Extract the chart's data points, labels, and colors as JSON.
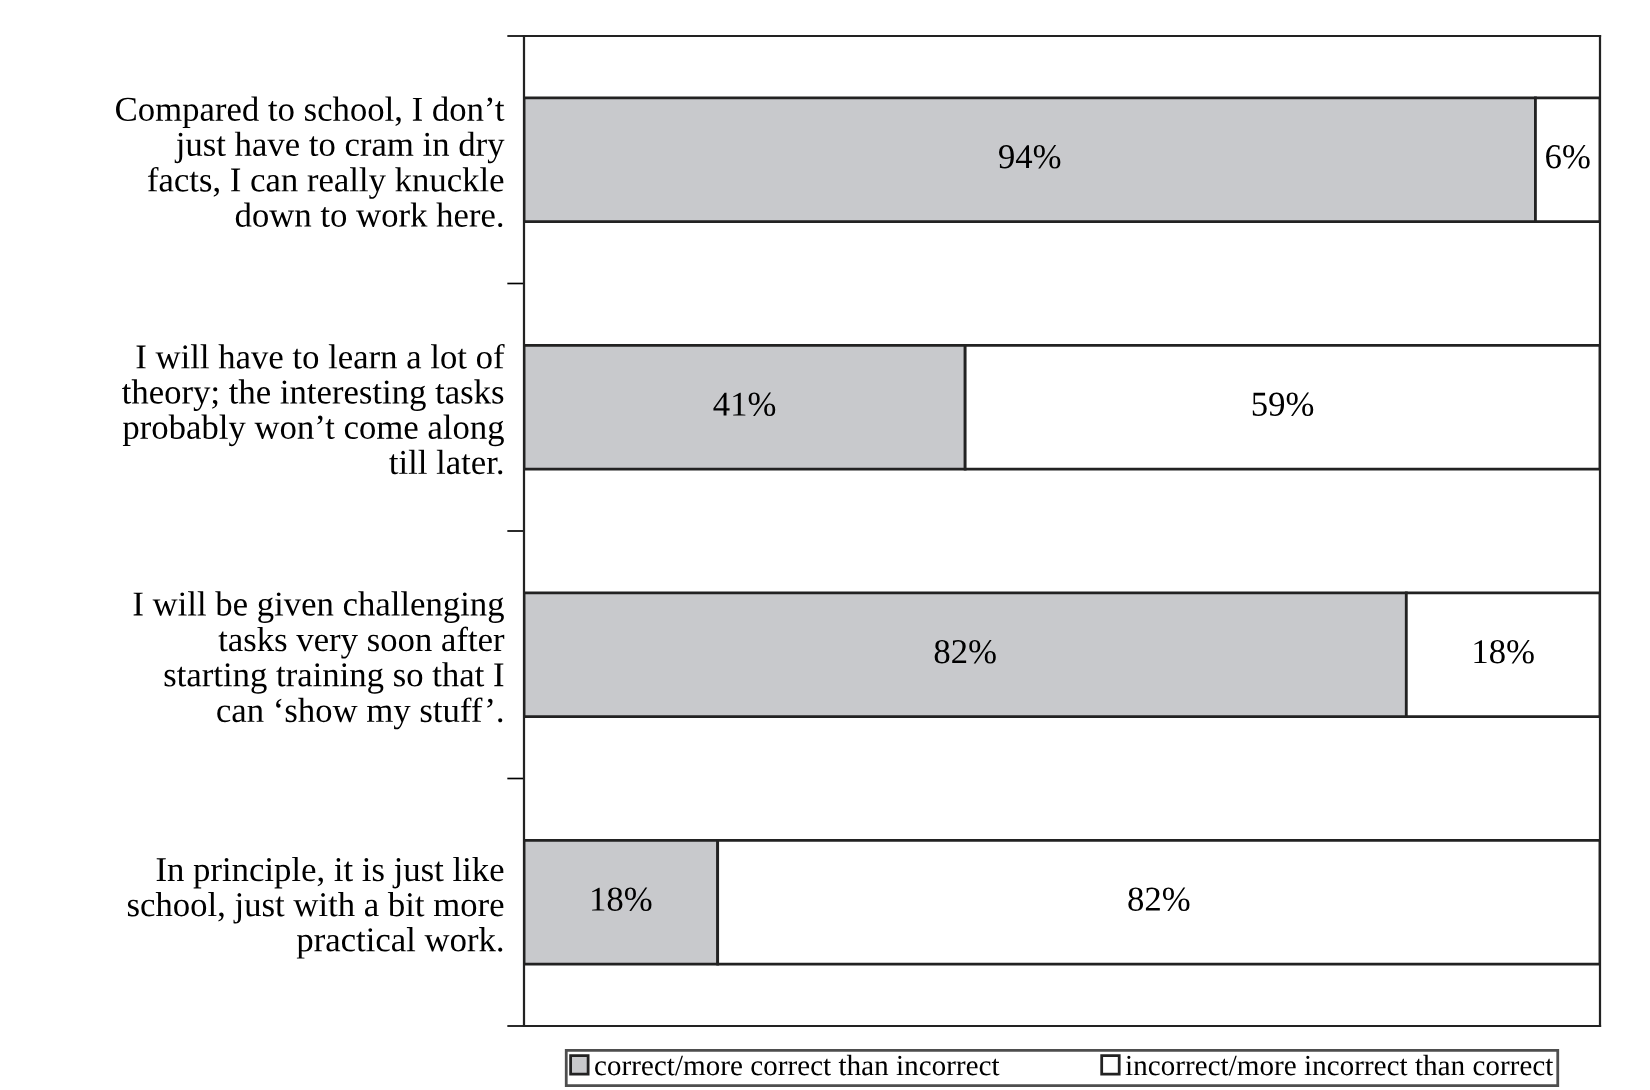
{
  "chart_data": {
    "type": "bar",
    "orientation": "horizontal",
    "stacked": true,
    "categories": [
      "Compared to school, I don’t\njust have to cram in dry\nfacts, I can really knuckle\ndown to work here.",
      "I will have to learn a lot of\ntheory; the interesting tasks\nprobably won’t come along\ntill later.",
      "I will be given challenging\ntasks very soon after\nstarting training so that I\ncan ‘show my stuff’.",
      "In principle, it is just like\nschool, just with a bit more\npractical work."
    ],
    "series": [
      {
        "name": "correct/more correct than incorrect",
        "color": "#c8c9cc",
        "values": [
          94,
          41,
          82,
          18
        ],
        "value_labels": [
          "94%",
          "41%",
          "82%",
          "18%"
        ]
      },
      {
        "name": "incorrect/more incorrect than correct",
        "color": "#ffffff",
        "values": [
          6,
          59,
          18,
          82
        ],
        "value_labels": [
          "6%",
          "59%",
          "18%",
          "82%"
        ]
      }
    ],
    "data_labels": true,
    "xlim": [
      0,
      100
    ],
    "tick_labels": "y",
    "legend": "bottom",
    "grid": false
  }
}
